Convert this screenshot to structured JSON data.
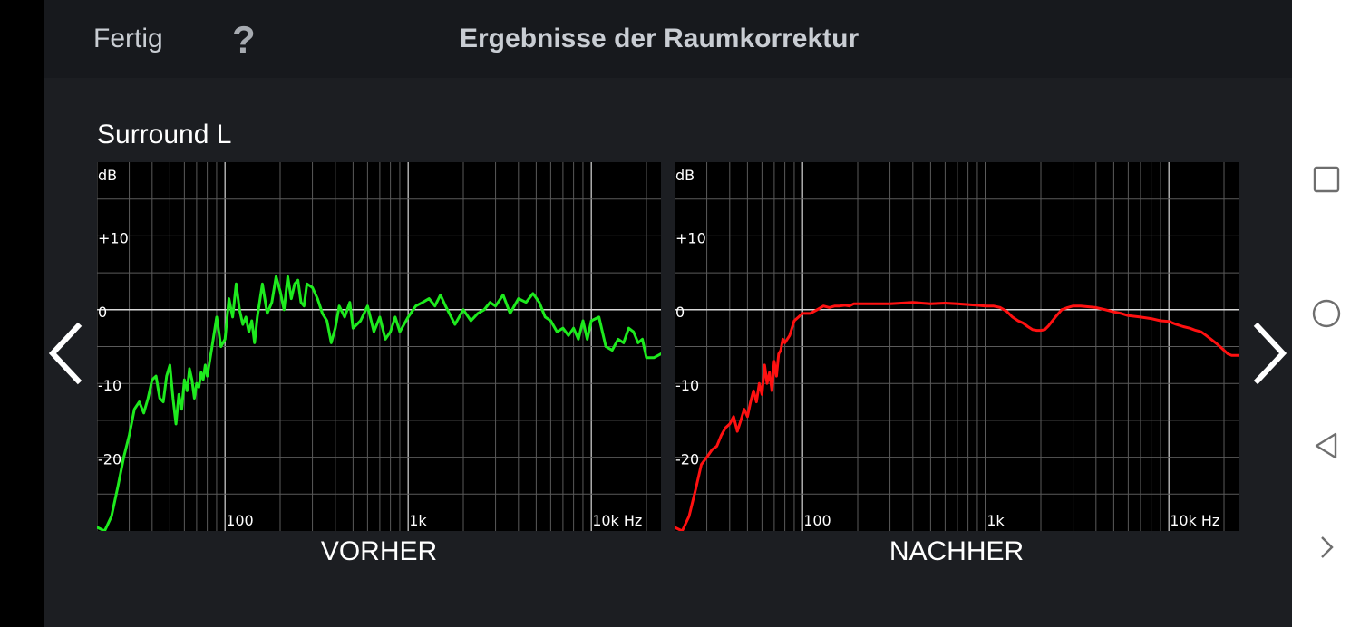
{
  "header": {
    "done_label": "Fertig",
    "help_label": "?",
    "title": "Ergebnisse der Raumkorrektur"
  },
  "channel_name": "Surround L",
  "icons": {
    "prev": "chevron-left-icon",
    "next": "chevron-right-icon",
    "recents": "square-icon",
    "home": "circle-icon",
    "back": "triangle-left-icon",
    "expand": "chevron-right-small-icon"
  },
  "chart_data": [
    {
      "type": "line",
      "title": "VORHER",
      "xlabel": "",
      "ylabel": "dB",
      "x_scale": "log",
      "xlim": [
        20,
        24000
      ],
      "ylim": [
        -30,
        20
      ],
      "grid": true,
      "x_tick_labels": [
        "100",
        "1k",
        "10k Hz"
      ],
      "y_tick_labels": [
        "+10",
        "0",
        "-10",
        "-20"
      ],
      "color": "#1eea1e",
      "series": [
        {
          "x": [
            20,
            22,
            24,
            26,
            28,
            30,
            32,
            34,
            36,
            38,
            40,
            42,
            44,
            46,
            48,
            50,
            52,
            54,
            56,
            58,
            60,
            62,
            64,
            66,
            68,
            70,
            72,
            74,
            76,
            78,
            80,
            85,
            90,
            95,
            100,
            105,
            110,
            115,
            120,
            125,
            130,
            135,
            140,
            145,
            150,
            160,
            170,
            180,
            190,
            200,
            210,
            220,
            230,
            240,
            250,
            260,
            270,
            280,
            300,
            320,
            340,
            360,
            380,
            400,
            420,
            450,
            480,
            500,
            550,
            600,
            650,
            700,
            750,
            800,
            850,
            900,
            1000,
            1100,
            1200,
            1300,
            1400,
            1500,
            1600,
            1800,
            2000,
            2200,
            2400,
            2600,
            2800,
            3000,
            3300,
            3600,
            4000,
            4400,
            4800,
            5200,
            5600,
            6000,
            6500,
            7000,
            7500,
            8000,
            8500,
            9000,
            9500,
            10000,
            11000,
            12000,
            13000,
            14000,
            15000,
            16000,
            17000,
            18000,
            19000,
            20000,
            22000,
            24000
          ],
          "values": [
            -29.5,
            -30,
            -28,
            -24,
            -20,
            -17,
            -13.5,
            -12.5,
            -14,
            -12,
            -9.5,
            -9,
            -12,
            -12.5,
            -9,
            -7.5,
            -12,
            -15.5,
            -11.5,
            -13.5,
            -9.5,
            -11,
            -8,
            -9.5,
            -12,
            -10,
            -10.5,
            -8.5,
            -9.5,
            -7.5,
            -9,
            -5,
            -1,
            -5,
            -4,
            1.5,
            -1,
            3.5,
            0,
            -2,
            -1,
            -3,
            -1.5,
            -4.5,
            -1,
            3.5,
            -0.5,
            1,
            4.5,
            2.5,
            0,
            4.5,
            1.5,
            3.5,
            4,
            1,
            0.5,
            3.5,
            3,
            1.5,
            -0.5,
            -1.5,
            -4.5,
            -2.5,
            0.5,
            -1,
            1,
            -2.5,
            -1.5,
            0.5,
            -3,
            -1,
            -4,
            -3,
            -1,
            -3,
            -1,
            0.5,
            1,
            1.5,
            0.5,
            2,
            0.5,
            -2,
            0,
            -1.5,
            -0.5,
            0,
            1,
            0.5,
            2,
            -0.5,
            1.5,
            1,
            2.2,
            1,
            -1,
            -1.5,
            -3,
            -2.5,
            -3.5,
            -2.5,
            -4,
            -1.5,
            -4,
            -1.5,
            -1,
            -5,
            -5.5,
            -4,
            -4.5,
            -2.5,
            -3,
            -4.5,
            -4,
            -6.5,
            -6.5,
            -6
          ]
        }
      ]
    },
    {
      "type": "line",
      "title": "NACHHER",
      "xlabel": "",
      "ylabel": "dB",
      "x_scale": "log",
      "xlim": [
        20,
        24000
      ],
      "ylim": [
        -30,
        20
      ],
      "grid": true,
      "x_tick_labels": [
        "100",
        "1k",
        "10k Hz"
      ],
      "y_tick_labels": [
        "+10",
        "0",
        "-10",
        "-20"
      ],
      "color": "#ff1111",
      "series": [
        {
          "x": [
            20,
            22,
            24,
            26,
            28,
            30,
            32,
            34,
            36,
            38,
            40,
            42,
            44,
            46,
            48,
            50,
            52,
            54,
            56,
            58,
            60,
            62,
            64,
            66,
            68,
            70,
            72,
            74,
            76,
            78,
            80,
            85,
            90,
            95,
            100,
            110,
            120,
            130,
            140,
            150,
            160,
            170,
            180,
            190,
            200,
            250,
            300,
            400,
            500,
            600,
            700,
            800,
            900,
            1000,
            1100,
            1200,
            1300,
            1400,
            1500,
            1600,
            1700,
            1800,
            1900,
            2000,
            2100,
            2200,
            2400,
            2600,
            2800,
            3000,
            3300,
            3600,
            4000,
            4500,
            5000,
            5500,
            6000,
            7000,
            8000,
            9000,
            10000,
            11000,
            12000,
            13000,
            14000,
            15000,
            16000,
            17000,
            18000,
            19000,
            20000,
            21000,
            22000,
            23000,
            24000
          ],
          "values": [
            -29.5,
            -30,
            -28,
            -24.5,
            -21,
            -20,
            -19,
            -18.5,
            -17,
            -16,
            -15.5,
            -14.5,
            -16.5,
            -15,
            -13.5,
            -14.5,
            -12.5,
            -11,
            -12.5,
            -10,
            -11.5,
            -7.5,
            -10,
            -8.5,
            -11,
            -7,
            -9,
            -6,
            -5.5,
            -4,
            -4.5,
            -3.5,
            -1.5,
            -1,
            -0.5,
            -0.5,
            0,
            0.5,
            0.3,
            0.5,
            0.5,
            0.6,
            0.5,
            0.8,
            0.8,
            0.8,
            0.8,
            1,
            0.8,
            0.9,
            0.8,
            0.7,
            0.6,
            0.5,
            0.5,
            0.3,
            -0.2,
            -1,
            -1.5,
            -1.8,
            -2.3,
            -2.7,
            -2.8,
            -2.8,
            -2.7,
            -2.2,
            -1,
            0,
            0.3,
            0.5,
            0.5,
            0.4,
            0.3,
            0,
            -0.3,
            -0.5,
            -0.8,
            -1,
            -1.2,
            -1.5,
            -1.6,
            -2,
            -2.3,
            -2.5,
            -2.8,
            -3,
            -3.5,
            -4,
            -4.5,
            -5,
            -5.5,
            -6,
            -6.2,
            -6.2,
            -6.2
          ]
        }
      ]
    }
  ]
}
